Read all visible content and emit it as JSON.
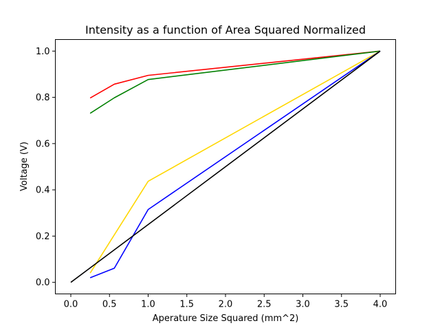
{
  "chart_data": {
    "type": "line",
    "title": "Intensity as a function of Area Squared Normalized",
    "xlabel": "Aperature Size Squared (mm^2)",
    "ylabel": "Voltage (V)",
    "xlim": [
      -0.2,
      4.2
    ],
    "ylim": [
      -0.05,
      1.05
    ],
    "x_ticks": [
      0.0,
      0.5,
      1.0,
      1.5,
      2.0,
      2.5,
      3.0,
      3.5,
      4.0
    ],
    "x_tick_labels": [
      "0.0",
      "0.5",
      "1.0",
      "1.5",
      "2.0",
      "2.5",
      "3.0",
      "3.5",
      "4.0"
    ],
    "y_ticks": [
      0.0,
      0.2,
      0.4,
      0.6,
      0.8,
      1.0
    ],
    "y_tick_labels": [
      "0.0",
      "0.2",
      "0.4",
      "0.6",
      "0.8",
      "1.0"
    ],
    "grid": false,
    "legend": false,
    "series": [
      {
        "color": "#ff0000",
        "x": [
          0.25,
          0.5625,
          1.0,
          4.0
        ],
        "y": [
          0.797,
          0.857,
          0.895,
          1.0
        ]
      },
      {
        "color": "#008000",
        "x": [
          0.25,
          0.5625,
          1.0,
          4.0
        ],
        "y": [
          0.731,
          0.798,
          0.877,
          1.0
        ]
      },
      {
        "color": "#ffd700",
        "x": [
          0.25,
          1.0,
          4.0
        ],
        "y": [
          0.04,
          0.437,
          1.0
        ]
      },
      {
        "color": "#0000ff",
        "x": [
          0.25,
          0.5625,
          1.0,
          4.0
        ],
        "y": [
          0.02,
          0.061,
          0.315,
          1.0
        ]
      },
      {
        "color": "#000000",
        "x": [
          0.0,
          4.0
        ],
        "y": [
          0.0,
          1.0
        ]
      }
    ]
  }
}
